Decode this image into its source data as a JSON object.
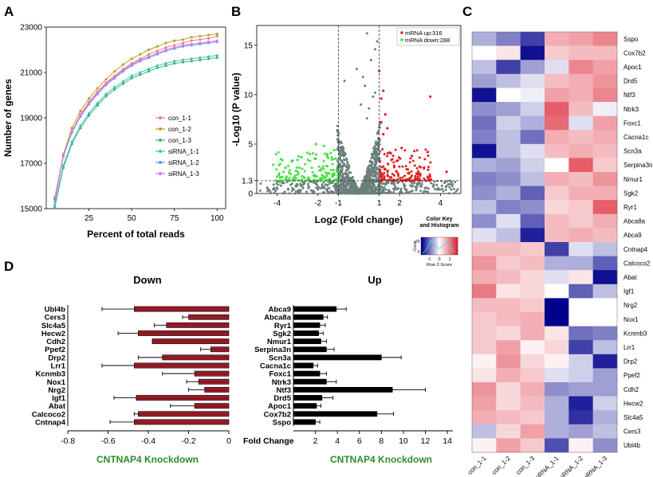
{
  "figure": {
    "panel_labels": [
      "A",
      "B",
      "C",
      "D"
    ]
  },
  "chart_data": [
    {
      "panel": "A",
      "type": "line",
      "xlabel": "Percent of total reads",
      "ylabel": "Number of genes",
      "xlim": [
        0,
        105
      ],
      "ylim": [
        15000,
        23000
      ],
      "xticks": [
        25,
        50,
        75,
        100
      ],
      "yticks": [
        15000,
        17000,
        19000,
        21000,
        23000
      ],
      "x": [
        5,
        10,
        15,
        20,
        25,
        30,
        35,
        40,
        45,
        50,
        55,
        60,
        65,
        70,
        75,
        80,
        85,
        90,
        95,
        100
      ],
      "series": [
        {
          "name": "con_1-1",
          "color": "#f08080",
          "values": [
            15300,
            17300,
            18400,
            19150,
            19700,
            20150,
            20550,
            20850,
            21150,
            21400,
            21600,
            21800,
            21950,
            22100,
            22200,
            22300,
            22400,
            22450,
            22500,
            22600
          ]
        },
        {
          "name": "con_1-2",
          "color": "#b8a030",
          "values": [
            15400,
            17400,
            18550,
            19300,
            19850,
            20300,
            20700,
            21050,
            21350,
            21600,
            21800,
            22000,
            22150,
            22300,
            22400,
            22450,
            22550,
            22600,
            22650,
            22700
          ]
        },
        {
          "name": "con_1-3",
          "color": "#3cb371",
          "values": [
            15050,
            16800,
            17850,
            18550,
            19100,
            19550,
            19950,
            20250,
            20500,
            20750,
            20900,
            21050,
            21200,
            21300,
            21400,
            21450,
            21500,
            21550,
            21600,
            21650
          ]
        },
        {
          "name": "siRNA_1-1",
          "color": "#40c0c0",
          "values": [
            15150,
            16900,
            17950,
            18650,
            19200,
            19650,
            20050,
            20350,
            20600,
            20850,
            21000,
            21150,
            21300,
            21400,
            21500,
            21550,
            21600,
            21650,
            21700,
            21750
          ]
        },
        {
          "name": "siRNA_1-2",
          "color": "#6495ed",
          "values": [
            15450,
            17300,
            18350,
            19050,
            19600,
            20050,
            20450,
            20750,
            21050,
            21300,
            21500,
            21650,
            21800,
            21950,
            22050,
            22150,
            22200,
            22250,
            22300,
            22350
          ]
        },
        {
          "name": "siRNA_1-3",
          "color": "#e078e0",
          "values": [
            15500,
            17350,
            18400,
            19100,
            19650,
            20100,
            20500,
            20800,
            21100,
            21350,
            21550,
            21700,
            21850,
            22000,
            22100,
            22200,
            22250,
            22300,
            22350,
            22400
          ]
        }
      ]
    },
    {
      "panel": "B",
      "type": "scatter",
      "xlabel": "Log2 (Fold change)",
      "ylabel": "-Log10 (P value)",
      "xlim": [
        -5,
        5
      ],
      "ylim": [
        0,
        17
      ],
      "xticks": [
        -4,
        -2,
        -1,
        1,
        2,
        4
      ],
      "yticks": [
        0,
        1.3,
        5,
        10,
        15
      ],
      "thresholds": {
        "x": [
          -1,
          1
        ],
        "y": 1.3
      },
      "legend": [
        {
          "label": "mRNA up:316",
          "color": "#e02020"
        },
        {
          "label": "mRNA down:288",
          "color": "#40e040"
        }
      ],
      "colors": {
        "up": "#e02020",
        "down": "#40e040",
        "ns": "#6b7f7b"
      },
      "highlight_points": [
        {
          "x": 1.0,
          "y": 12.4
        },
        {
          "x": 1.2,
          "y": 10.4
        },
        {
          "x": 1.1,
          "y": 9.6
        },
        {
          "x": 3.5,
          "y": 9.8
        },
        {
          "x": 1.3,
          "y": 8.0
        },
        {
          "x": 1.1,
          "y": 7.2
        },
        {
          "x": 1.4,
          "y": 6.6
        },
        {
          "x": 1.2,
          "y": 6.0
        },
        {
          "x": 2.1,
          "y": 4.6
        },
        {
          "x": 2.6,
          "y": 3.8
        },
        {
          "x": 1.6,
          "y": 3.4
        },
        {
          "x": 4.3,
          "y": 2.2
        },
        {
          "x": 3.4,
          "y": 2.4
        },
        {
          "x": -1.7,
          "y": 4.8
        },
        {
          "x": -2.1,
          "y": 5.0
        },
        {
          "x": -1.2,
          "y": 4.4
        },
        {
          "x": -3.0,
          "y": 3.4
        },
        {
          "x": -2.4,
          "y": 4.0
        },
        {
          "x": -1.5,
          "y": 3.6
        },
        {
          "x": -3.6,
          "y": 2.6
        }
      ],
      "ns_outliers": [
        {
          "x": 0.4,
          "y": 16.2
        },
        {
          "x": 0.2,
          "y": 11.8
        },
        {
          "x": 0.9,
          "y": 15.4
        },
        {
          "x": 0.6,
          "y": 13.5
        },
        {
          "x": 0.8,
          "y": 14.6
        },
        {
          "x": 0.3,
          "y": 10.9
        },
        {
          "x": 0.7,
          "y": 9.8
        },
        {
          "x": 0.5,
          "y": 8.6
        },
        {
          "x": -0.1,
          "y": 12.6
        },
        {
          "x": -0.7,
          "y": 11.4
        },
        {
          "x": 0.8,
          "y": 10.2
        },
        {
          "x": 0.1,
          "y": 9.0
        },
        {
          "x": 0.4,
          "y": 7.6
        }
      ]
    },
    {
      "panel": "C",
      "type": "heatmap",
      "columns": [
        "con_1-1",
        "con_1-2",
        "con_1-3",
        "siRNA_1-1",
        "siRNA_1-2",
        "siRNA_1-3"
      ],
      "rows": [
        "Sspo",
        "Cox7b2",
        "Apoc1",
        "Drd5",
        "Ntf3",
        "Ntrk3",
        "Foxc1",
        "Cacna1c",
        "Scn3a",
        "Serpina3n",
        "Nmur1",
        "Sgk2",
        "Ryr1",
        "Abca8a",
        "Abca9",
        "Cntnap4",
        "Calcoco2",
        "Abat",
        "Igf1",
        "Nrg2",
        "Nox1",
        "Kcnmb3",
        "Lrr1",
        "Drp2",
        "Ppef2",
        "Cdh2",
        "Hecw2",
        "Slc4a5",
        "Cers3",
        "Ubl4b"
      ],
      "values": [
        [
          -0.5,
          -0.8,
          -1.2,
          0.6,
          0.7,
          0.9
        ],
        [
          0.0,
          0.2,
          -1.5,
          0.4,
          0.5,
          0.5
        ],
        [
          -0.4,
          -1.2,
          -0.6,
          -0.2,
          0.9,
          0.7
        ],
        [
          -0.6,
          -0.4,
          -0.2,
          0.5,
          0.6,
          0.8
        ],
        [
          -1.5,
          0.0,
          -0.1,
          0.7,
          0.6,
          0.9
        ],
        [
          -0.7,
          -0.6,
          -0.3,
          1.2,
          0.5,
          -0.1
        ],
        [
          -0.9,
          -0.3,
          -0.5,
          1.1,
          -0.2,
          0.7
        ],
        [
          -0.8,
          -0.4,
          -0.9,
          0.6,
          0.5,
          0.6
        ],
        [
          -1.5,
          -0.4,
          -0.2,
          0.5,
          0.6,
          0.5
        ],
        [
          -0.5,
          -0.6,
          -0.3,
          0.0,
          1.2,
          0.4
        ],
        [
          -0.8,
          -0.7,
          -0.4,
          0.6,
          0.5,
          0.8
        ],
        [
          -0.7,
          -0.5,
          -1.0,
          0.4,
          0.6,
          0.6
        ],
        [
          -0.4,
          -0.8,
          -0.7,
          0.3,
          0.4,
          1.2
        ],
        [
          -0.7,
          -0.2,
          -1.0,
          0.5,
          0.4,
          0.6
        ],
        [
          -0.2,
          -0.4,
          -1.4,
          0.5,
          0.6,
          0.5
        ],
        [
          0.5,
          0.5,
          0.4,
          -1.2,
          -0.2,
          -0.4
        ],
        [
          0.8,
          0.4,
          0.5,
          -0.5,
          -0.5,
          -1.0
        ],
        [
          0.6,
          0.5,
          0.3,
          -0.2,
          0.2,
          -1.5
        ],
        [
          1.0,
          0.2,
          0.3,
          0.0,
          -1.0,
          -0.4
        ],
        [
          0.5,
          0.5,
          0.4,
          -1.6,
          0.0,
          0.0
        ],
        [
          0.4,
          0.5,
          0.6,
          -1.6,
          0.0,
          0.0
        ],
        [
          0.4,
          0.3,
          0.6,
          0.2,
          -0.9,
          -0.8
        ],
        [
          0.4,
          0.7,
          0.1,
          0.3,
          -1.2,
          -0.4
        ],
        [
          0.1,
          0.8,
          0.3,
          0.1,
          -0.3,
          -1.4
        ],
        [
          0.2,
          0.6,
          0.4,
          -0.2,
          -0.3,
          -0.6
        ],
        [
          0.8,
          0.3,
          0.6,
          -0.7,
          -0.6,
          -0.6
        ],
        [
          0.7,
          0.3,
          0.5,
          -0.5,
          -1.4,
          -0.3
        ],
        [
          0.6,
          0.5,
          0.4,
          -0.5,
          -1.3,
          -0.5
        ],
        [
          -0.4,
          0.3,
          0.7,
          -0.5,
          -0.6,
          -0.4
        ],
        [
          0.1,
          0.7,
          0.4,
          -1.1,
          0.1,
          -0.7
        ]
      ],
      "color_key": {
        "title": "Color Key",
        "subtitle": "and Histogram",
        "xlabel": "Row Z-Score",
        "ylabel": "Count",
        "ticks": [
          "-1",
          "0",
          "1"
        ],
        "count_ticks": [
          "0",
          "20"
        ]
      }
    },
    {
      "panel": "D-down",
      "type": "bar",
      "title": "Down",
      "xlabel": "CNTNAP4 Knockdown",
      "xlim": [
        -0.8,
        0.0
      ],
      "xticks": [
        -0.8,
        -0.6,
        -0.4,
        -0.2,
        0.0
      ],
      "bar_color": "#b02030",
      "categories": [
        "Ubl4b",
        "Cers3",
        "Slc4a5",
        "Hecw2",
        "Cdh2",
        "Ppef2",
        "Drp2",
        "Lrr1",
        "Kcnmb3",
        "Nox1",
        "Nrg2",
        "Igf1",
        "Abat",
        "Calcoco2",
        "Cntnap4"
      ],
      "values": [
        -0.47,
        -0.2,
        -0.31,
        -0.45,
        -0.38,
        -0.09,
        -0.33,
        -0.47,
        -0.17,
        -0.15,
        -0.12,
        -0.46,
        -0.17,
        -0.45,
        -0.47
      ],
      "errors": [
        0.16,
        0.03,
        0.06,
        0.1,
        0.0,
        0.05,
        0.12,
        0.16,
        0.16,
        0.06,
        0.08,
        0.11,
        0.12,
        0.02,
        0.12
      ]
    },
    {
      "panel": "D-up",
      "type": "bar",
      "title": "Up",
      "xlabel": "CNTNAP4 Knockdown",
      "axis_title": "Fold Change",
      "xlim": [
        0,
        14.5
      ],
      "xticks": [
        2,
        4,
        6,
        8,
        10,
        12,
        14
      ],
      "bar_color": "#000000",
      "categories": [
        "Abca9",
        "Abca8a",
        "Ryr1",
        "Sgk2",
        "Nmur1",
        "Serpina3n",
        "Scn3a",
        "Cacna1c",
        "Foxc1",
        "Ntrk3",
        "Ntf3",
        "Drd5",
        "Apoc1",
        "Cox7b2",
        "Sspo"
      ],
      "values": [
        3.9,
        2.7,
        2.4,
        2.3,
        2.5,
        3.0,
        8.0,
        1.8,
        2.4,
        3.0,
        9.0,
        2.6,
        2.1,
        7.6,
        2.0
      ],
      "errors": [
        0.9,
        0.4,
        0.5,
        0.4,
        0.5,
        0.7,
        1.8,
        0.4,
        0.6,
        0.9,
        3.0,
        1.0,
        0.4,
        1.5,
        0.4
      ]
    }
  ]
}
